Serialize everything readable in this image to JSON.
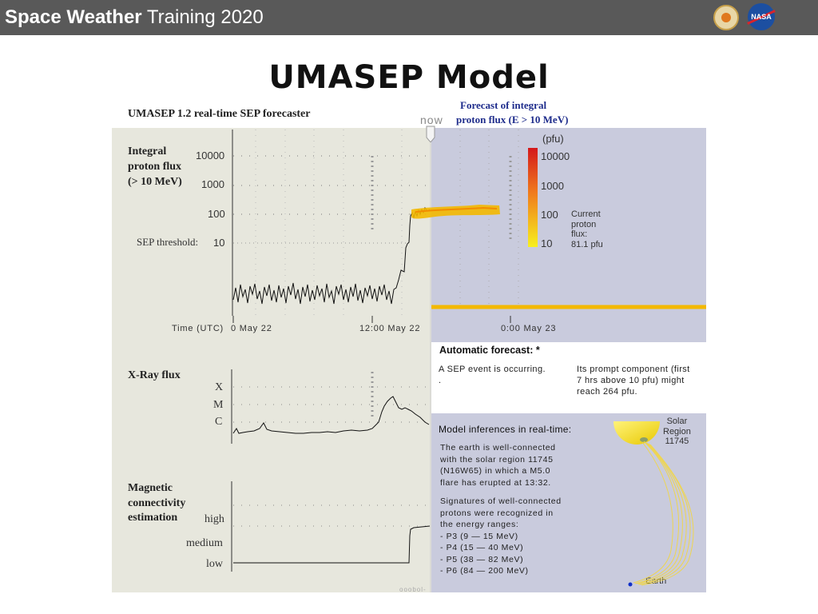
{
  "header": {
    "title_bold": "Space Weather",
    "title_rest": " Training 2020",
    "logo_nasa": "NASA"
  },
  "slide": {
    "title": "UMASEP Model"
  },
  "umasep": {
    "forecaster_title": "UMASEP 1.2  real-time SEP forecaster",
    "now_label": "now",
    "forecast_title_line1": "Forecast of integral",
    "forecast_title_line2": "proton flux (E > 10 MeV)",
    "pfu_label": "(pfu)",
    "flux_title_line1": "Integral",
    "flux_title_line2": "proton flux",
    "flux_title_line3": "(> 10 MeV)",
    "y_ticks": [
      "10000",
      "1000",
      "100",
      "10"
    ],
    "threshold_label": "SEP threshold:",
    "scale_ticks": [
      "10000",
      "1000",
      "100",
      "10"
    ],
    "current_flux": [
      "Current",
      "proton",
      "flux:",
      "81.1 pfu"
    ],
    "time_label": "Time (UTC)",
    "time_ticks": [
      "0  May  22",
      "12:00 May  22",
      "0:00  May  23"
    ],
    "auto_forecast_title": "Automatic forecast: *",
    "auto_forecast_left": "A SEP event is occurring.",
    "auto_forecast_left_dot": ".",
    "auto_forecast_right": [
      "Its prompt component (first",
      "7 hrs above 10 pfu) might",
      "reach 264 pfu."
    ],
    "xray_title": "X-Ray flux",
    "xray_classes": [
      "X",
      "M",
      "C"
    ],
    "mag_title": [
      "Magnetic",
      "connectivity",
      "estimation"
    ],
    "mag_levels": [
      "high",
      "medium",
      "low"
    ],
    "inference_title": "Model inferences in real-time:",
    "inference_p1": [
      "The earth is well-connected",
      "with the solar region 11745",
      "(N16W65) in which a M5.0",
      "flare has erupted at 13:32."
    ],
    "inference_p2": [
      "Signatures of well-connected",
      "protons were recognized in",
      "the energy ranges:",
      "- P3 (9 — 15 MeV)",
      "- P4 (15 — 40 MeV)",
      "- P5 (38 — 82 MeV)",
      "- P6 (84 — 200 MeV)"
    ],
    "solar_region_label": [
      "Solar",
      "Region",
      "11745"
    ],
    "earth_label": "Earth",
    "footer_mark": "ooobol-"
  },
  "colors": {
    "header_bg": "#595959",
    "panel_left": "#e7e7dd",
    "panel_right": "#c9cbdd",
    "forecast_blue": "#1f2d8c",
    "flux_band": "#f3b800"
  }
}
